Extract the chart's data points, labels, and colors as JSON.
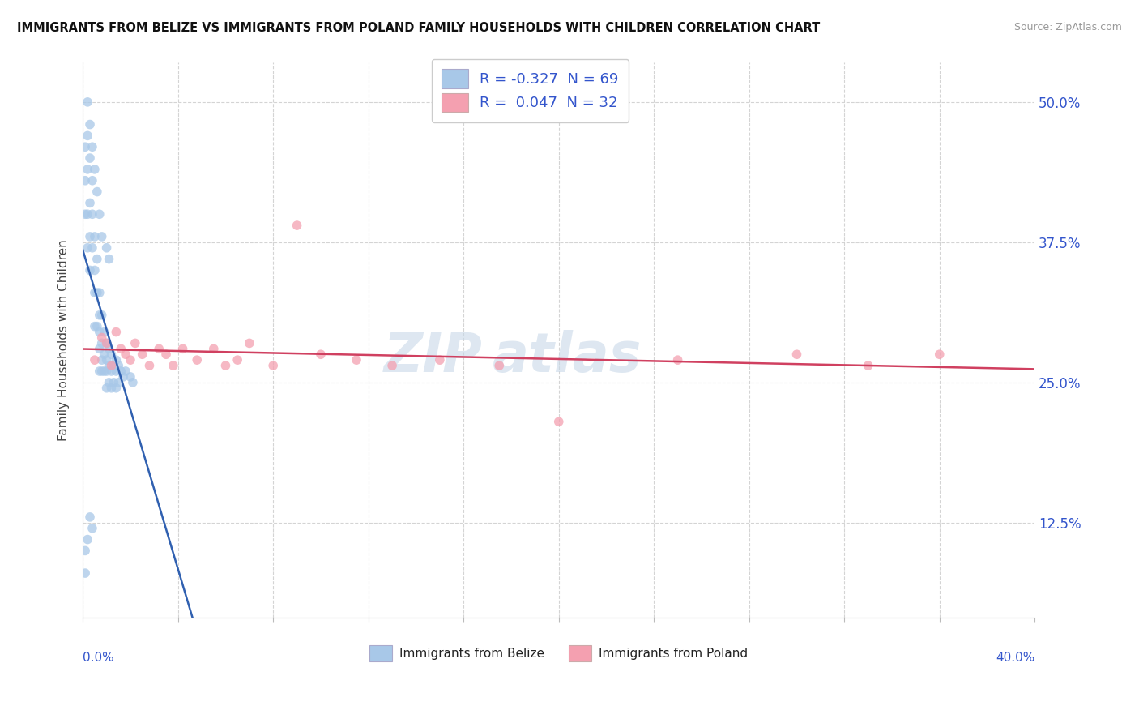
{
  "title": "IMMIGRANTS FROM BELIZE VS IMMIGRANTS FROM POLAND FAMILY HOUSEHOLDS WITH CHILDREN CORRELATION CHART",
  "source": "Source: ZipAtlas.com",
  "ylabel": "Family Households with Children",
  "ytick_labels": [
    "12.5%",
    "25.0%",
    "37.5%",
    "50.0%"
  ],
  "ytick_values": [
    0.125,
    0.25,
    0.375,
    0.5
  ],
  "xmin": 0.0,
  "xmax": 0.4,
  "ymin": 0.04,
  "ymax": 0.535,
  "legend_label_belize": "R = -0.327  N = 69",
  "legend_label_poland": "R =  0.047  N = 32",
  "belize_color": "#a8c8e8",
  "poland_color": "#f4a0b0",
  "belize_line_color": "#3060b0",
  "poland_line_color": "#d04060",
  "watermark_color": "#c8d8e8",
  "background_color": "#ffffff",
  "grid_color": "#d0d0d0",
  "belize_points_x": [
    0.001,
    0.001,
    0.001,
    0.002,
    0.002,
    0.002,
    0.002,
    0.003,
    0.003,
    0.003,
    0.003,
    0.004,
    0.004,
    0.004,
    0.005,
    0.005,
    0.005,
    0.005,
    0.006,
    0.006,
    0.006,
    0.007,
    0.007,
    0.007,
    0.007,
    0.007,
    0.008,
    0.008,
    0.008,
    0.008,
    0.009,
    0.009,
    0.009,
    0.01,
    0.01,
    0.01,
    0.01,
    0.011,
    0.011,
    0.011,
    0.012,
    0.012,
    0.012,
    0.013,
    0.013,
    0.014,
    0.014,
    0.014,
    0.015,
    0.015,
    0.016,
    0.017,
    0.018,
    0.02,
    0.021,
    0.002,
    0.003,
    0.004,
    0.005,
    0.006,
    0.007,
    0.008,
    0.01,
    0.011,
    0.001,
    0.001,
    0.002,
    0.003,
    0.004
  ],
  "belize_points_y": [
    0.46,
    0.43,
    0.4,
    0.47,
    0.44,
    0.4,
    0.37,
    0.45,
    0.41,
    0.38,
    0.35,
    0.43,
    0.4,
    0.37,
    0.38,
    0.35,
    0.33,
    0.3,
    0.36,
    0.33,
    0.3,
    0.33,
    0.31,
    0.295,
    0.28,
    0.26,
    0.31,
    0.285,
    0.27,
    0.26,
    0.295,
    0.275,
    0.26,
    0.285,
    0.27,
    0.26,
    0.245,
    0.28,
    0.265,
    0.25,
    0.275,
    0.26,
    0.245,
    0.265,
    0.25,
    0.27,
    0.26,
    0.245,
    0.265,
    0.25,
    0.26,
    0.255,
    0.26,
    0.255,
    0.25,
    0.5,
    0.48,
    0.46,
    0.44,
    0.42,
    0.4,
    0.38,
    0.37,
    0.36,
    0.1,
    0.08,
    0.11,
    0.13,
    0.12
  ],
  "poland_points_x": [
    0.005,
    0.008,
    0.01,
    0.012,
    0.014,
    0.016,
    0.018,
    0.02,
    0.022,
    0.025,
    0.028,
    0.032,
    0.035,
    0.038,
    0.042,
    0.048,
    0.055,
    0.06,
    0.065,
    0.07,
    0.08,
    0.09,
    0.1,
    0.115,
    0.13,
    0.15,
    0.175,
    0.2,
    0.25,
    0.3,
    0.33,
    0.36
  ],
  "poland_points_y": [
    0.27,
    0.29,
    0.285,
    0.265,
    0.295,
    0.28,
    0.275,
    0.27,
    0.285,
    0.275,
    0.265,
    0.28,
    0.275,
    0.265,
    0.28,
    0.27,
    0.28,
    0.265,
    0.27,
    0.285,
    0.265,
    0.39,
    0.275,
    0.27,
    0.265,
    0.27,
    0.265,
    0.215,
    0.27,
    0.275,
    0.265,
    0.275
  ]
}
